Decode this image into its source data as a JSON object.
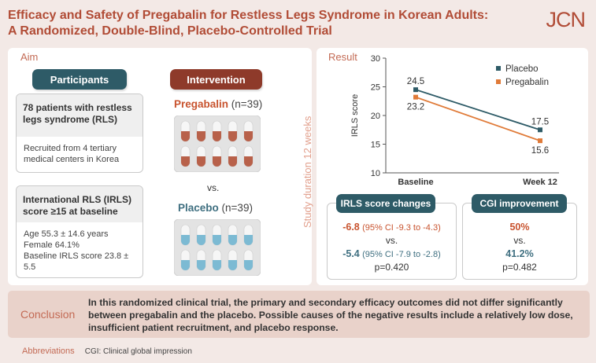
{
  "header": {
    "title_line1": "Efficacy and Safety of Pregabalin for Restless Legs Syndrome in Korean Adults:",
    "title_line2": "A Randomized, Double-Blind, Placebo-Controlled Trial",
    "journal": "JCN"
  },
  "aim": {
    "label": "Aim",
    "participants_label": "Participants",
    "intervention_label": "Intervention",
    "box1": {
      "heading": "78 patients with restless legs syndrome (RLS)",
      "body": "Recruited from 4 tertiary medical centers in Korea"
    },
    "box2": {
      "heading": "International RLS (IRLS) score ≥15 at baseline",
      "line1": "Age 55.3 ± 14.6 years",
      "line2": "Female 64.1%",
      "line3": "Baseline IRLS score 23.8 ± 5.5"
    },
    "pregabalin": {
      "name": "Pregabalin",
      "n": "(n=39)"
    },
    "vs": "vs.",
    "placebo": {
      "name": "Placebo",
      "n": "(n=39)"
    }
  },
  "study_duration": "Study duration 12 weeks",
  "result": {
    "label": "Result",
    "irls_changes": {
      "title": "IRLS score changes",
      "pregabalin_value": "-6.8",
      "pregabalin_ci": "(95% CI -9.3 to -4.3)",
      "vs": "vs.",
      "placebo_value": "-5.4",
      "placebo_ci": "(95% CI -7.9 to -2.8)",
      "p": "p=0.420"
    },
    "cgi": {
      "title": "CGI improvement",
      "pregabalin_value": "50%",
      "vs": "vs.",
      "placebo_value": "41.2%",
      "p": "p=0.482"
    }
  },
  "chart_data": {
    "type": "line",
    "title": "",
    "xlabel": "",
    "ylabel": "IRLS score",
    "categories": [
      "Baseline",
      "Week 12"
    ],
    "ylim": [
      10,
      30
    ],
    "yticks": [
      10,
      15,
      20,
      25,
      30
    ],
    "legend_position": "top-right",
    "series": [
      {
        "name": "Placebo",
        "values": [
          24.5,
          17.5
        ],
        "color": "#2e5b67"
      },
      {
        "name": "Pregabalin",
        "values": [
          23.2,
          15.6
        ],
        "color": "#e07b39"
      }
    ],
    "data_labels": [
      "24.5",
      "17.5",
      "23.2",
      "15.6"
    ]
  },
  "conclusion": {
    "label": "Conclusion",
    "text": "In this randomized clinical trial, the primary and secondary efficacy outcomes did not differ significantly between pregabalin and the placebo. Possible causes of the negative results include a relatively low dose, insufficient patient recruitment, and placebo response."
  },
  "abbreviations": {
    "label": "Abbreviations",
    "text": "CGI: Clinical global impression"
  }
}
